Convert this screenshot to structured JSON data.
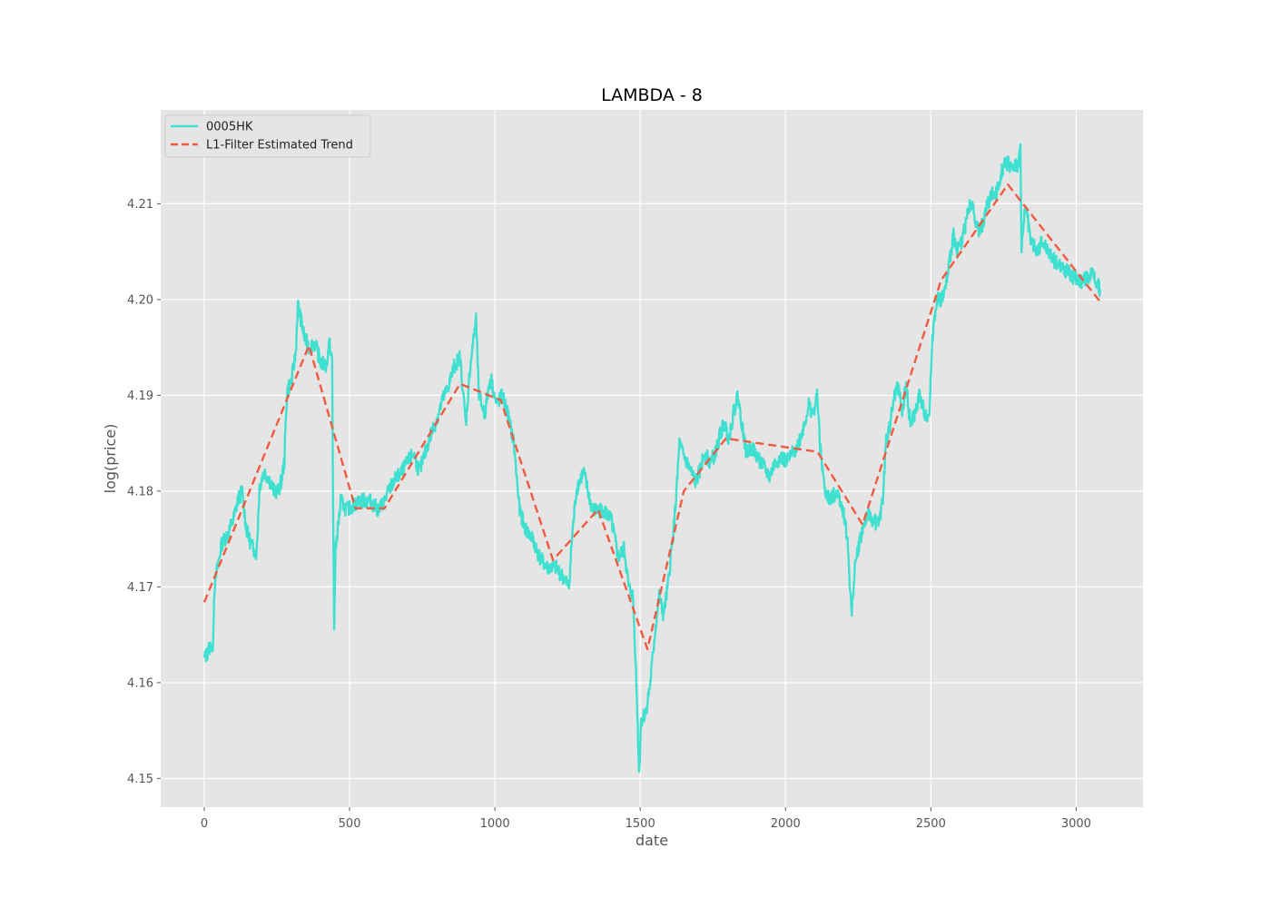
{
  "chart_data": {
    "type": "line",
    "title": "LAMBDA - 8",
    "xlabel": "date",
    "ylabel": "log(price)",
    "xlim": [
      -150,
      3230
    ],
    "ylim": [
      4.147,
      4.2198
    ],
    "xticks": [
      0,
      500,
      1000,
      1500,
      2000,
      2500,
      3000
    ],
    "yticks": [
      4.15,
      4.16,
      4.17,
      4.18,
      4.19,
      4.2,
      4.21
    ],
    "ytick_labels": [
      "4.15",
      "4.16",
      "4.17",
      "4.18",
      "4.19",
      "4.20",
      "4.21"
    ],
    "grid": true,
    "legend_position": "upper-left",
    "colors": {
      "background": "#e5e5e5",
      "grid": "#ffffff",
      "price": "#40e0d0",
      "trend": "#f05a40"
    },
    "series": [
      {
        "name": "0005HK",
        "style": "solid",
        "color": "#40e0d0",
        "anchors": [
          [
            0,
            4.1625
          ],
          [
            12,
            4.1632
          ],
          [
            25,
            4.1642
          ],
          [
            28,
            4.1625
          ],
          [
            35,
            4.17
          ],
          [
            45,
            4.172
          ],
          [
            60,
            4.1745
          ],
          [
            80,
            4.1755
          ],
          [
            100,
            4.177
          ],
          [
            115,
            4.179
          ],
          [
            130,
            4.18
          ],
          [
            145,
            4.176
          ],
          [
            160,
            4.1745
          ],
          [
            180,
            4.1735
          ],
          [
            190,
            4.1805
          ],
          [
            205,
            4.182
          ],
          [
            220,
            4.1815
          ],
          [
            240,
            4.18
          ],
          [
            255,
            4.18
          ],
          [
            265,
            4.181
          ],
          [
            275,
            4.183
          ],
          [
            285,
            4.1905
          ],
          [
            300,
            4.1915
          ],
          [
            315,
            4.1945
          ],
          [
            322,
            4.1995
          ],
          [
            332,
            4.198
          ],
          [
            345,
            4.196
          ],
          [
            360,
            4.195
          ],
          [
            380,
            4.1955
          ],
          [
            400,
            4.1935
          ],
          [
            420,
            4.193
          ],
          [
            430,
            4.1955
          ],
          [
            440,
            4.1935
          ],
          [
            443,
            4.179
          ],
          [
            447,
            4.166
          ],
          [
            452,
            4.174
          ],
          [
            470,
            4.179
          ],
          [
            490,
            4.178
          ],
          [
            510,
            4.1785
          ],
          [
            540,
            4.179
          ],
          [
            570,
            4.179
          ],
          [
            600,
            4.178
          ],
          [
            620,
            4.179
          ],
          [
            650,
            4.181
          ],
          [
            680,
            4.182
          ],
          [
            700,
            4.183
          ],
          [
            720,
            4.184
          ],
          [
            740,
            4.182
          ],
          [
            760,
            4.184
          ],
          [
            780,
            4.186
          ],
          [
            800,
            4.1875
          ],
          [
            820,
            4.1895
          ],
          [
            840,
            4.191
          ],
          [
            860,
            4.193
          ],
          [
            880,
            4.194
          ],
          [
            900,
            4.187
          ],
          [
            915,
            4.193
          ],
          [
            935,
            4.198
          ],
          [
            945,
            4.19
          ],
          [
            965,
            4.188
          ],
          [
            985,
            4.192
          ],
          [
            1005,
            4.189
          ],
          [
            1025,
            4.19
          ],
          [
            1045,
            4.188
          ],
          [
            1065,
            4.185
          ],
          [
            1085,
            4.178
          ],
          [
            1105,
            4.176
          ],
          [
            1130,
            4.175
          ],
          [
            1155,
            4.173
          ],
          [
            1180,
            4.172
          ],
          [
            1210,
            4.172
          ],
          [
            1235,
            4.171
          ],
          [
            1255,
            4.17
          ],
          [
            1265,
            4.175
          ],
          [
            1280,
            4.18
          ],
          [
            1290,
            4.181
          ],
          [
            1305,
            4.182
          ],
          [
            1320,
            4.18
          ],
          [
            1335,
            4.178
          ],
          [
            1350,
            4.178
          ],
          [
            1375,
            4.178
          ],
          [
            1400,
            4.177
          ],
          [
            1425,
            4.173
          ],
          [
            1445,
            4.174
          ],
          [
            1460,
            4.17
          ],
          [
            1475,
            4.169
          ],
          [
            1482,
            4.164
          ],
          [
            1490,
            4.157
          ],
          [
            1496,
            4.1505
          ],
          [
            1503,
            4.156
          ],
          [
            1520,
            4.157
          ],
          [
            1535,
            4.16
          ],
          [
            1550,
            4.165
          ],
          [
            1565,
            4.169
          ],
          [
            1580,
            4.167
          ],
          [
            1595,
            4.17
          ],
          [
            1615,
            4.176
          ],
          [
            1625,
            4.18
          ],
          [
            1635,
            4.185
          ],
          [
            1645,
            4.184
          ],
          [
            1660,
            4.183
          ],
          [
            1675,
            4.182
          ],
          [
            1690,
            4.181
          ],
          [
            1705,
            4.182
          ],
          [
            1720,
            4.184
          ],
          [
            1740,
            4.183
          ],
          [
            1760,
            4.184
          ],
          [
            1775,
            4.186
          ],
          [
            1790,
            4.187
          ],
          [
            1805,
            4.1855
          ],
          [
            1820,
            4.188
          ],
          [
            1835,
            4.19
          ],
          [
            1850,
            4.187
          ],
          [
            1865,
            4.184
          ],
          [
            1885,
            4.1845
          ],
          [
            1905,
            4.1835
          ],
          [
            1925,
            4.1825
          ],
          [
            1945,
            4.1815
          ],
          [
            1965,
            4.183
          ],
          [
            1985,
            4.1835
          ],
          [
            2005,
            4.183
          ],
          [
            2025,
            4.184
          ],
          [
            2045,
            4.185
          ],
          [
            2065,
            4.187
          ],
          [
            2080,
            4.189
          ],
          [
            2095,
            4.188
          ],
          [
            2110,
            4.19
          ],
          [
            2118,
            4.185
          ],
          [
            2135,
            4.18
          ],
          [
            2155,
            4.179
          ],
          [
            2175,
            4.18
          ],
          [
            2190,
            4.179
          ],
          [
            2205,
            4.177
          ],
          [
            2215,
            4.174
          ],
          [
            2222,
            4.17
          ],
          [
            2228,
            4.167
          ],
          [
            2238,
            4.172
          ],
          [
            2250,
            4.174
          ],
          [
            2265,
            4.176
          ],
          [
            2280,
            4.1775
          ],
          [
            2300,
            4.177
          ],
          [
            2320,
            4.1765
          ],
          [
            2335,
            4.179
          ],
          [
            2345,
            4.185
          ],
          [
            2360,
            4.187
          ],
          [
            2375,
            4.19
          ],
          [
            2390,
            4.191
          ],
          [
            2400,
            4.188
          ],
          [
            2415,
            4.191
          ],
          [
            2430,
            4.187
          ],
          [
            2445,
            4.188
          ],
          [
            2460,
            4.19
          ],
          [
            2480,
            4.188
          ],
          [
            2495,
            4.188
          ],
          [
            2505,
            4.196
          ],
          [
            2520,
            4.2
          ],
          [
            2535,
            4.2
          ],
          [
            2550,
            4.201
          ],
          [
            2565,
            4.204
          ],
          [
            2578,
            4.207
          ],
          [
            2590,
            4.205
          ],
          [
            2605,
            4.206
          ],
          [
            2620,
            4.208
          ],
          [
            2635,
            4.21
          ],
          [
            2650,
            4.209
          ],
          [
            2665,
            4.207
          ],
          [
            2680,
            4.208
          ],
          [
            2695,
            4.21
          ],
          [
            2710,
            4.211
          ],
          [
            2725,
            4.211
          ],
          [
            2740,
            4.213
          ],
          [
            2755,
            4.2145
          ],
          [
            2770,
            4.214
          ],
          [
            2785,
            4.214
          ],
          [
            2800,
            4.214
          ],
          [
            2808,
            4.216
          ],
          [
            2812,
            4.205
          ],
          [
            2825,
            4.21
          ],
          [
            2845,
            4.206
          ],
          [
            2865,
            4.205
          ],
          [
            2885,
            4.206
          ],
          [
            2905,
            4.205
          ],
          [
            2925,
            4.204
          ],
          [
            2945,
            4.2035
          ],
          [
            2965,
            4.203
          ],
          [
            2985,
            4.2025
          ],
          [
            3005,
            4.202
          ],
          [
            3025,
            4.202
          ],
          [
            3045,
            4.2025
          ],
          [
            3060,
            4.2025
          ],
          [
            3075,
            4.2015
          ],
          [
            3082,
            4.201
          ]
        ]
      },
      {
        "name": "L1-Filter Estimated Trend",
        "style": "dashed",
        "color": "#f05a40",
        "points": [
          [
            0,
            4.1684
          ],
          [
            360,
            4.1952
          ],
          [
            520,
            4.1782
          ],
          [
            620,
            4.1782
          ],
          [
            880,
            4.1912
          ],
          [
            1020,
            4.1895
          ],
          [
            1200,
            4.1728
          ],
          [
            1355,
            4.1781
          ],
          [
            1525,
            4.1635
          ],
          [
            1650,
            4.18
          ],
          [
            1795,
            4.1855
          ],
          [
            2110,
            4.1841
          ],
          [
            2265,
            4.1765
          ],
          [
            2535,
            4.202
          ],
          [
            2765,
            4.212
          ],
          [
            3082,
            4.1998
          ]
        ]
      }
    ]
  }
}
